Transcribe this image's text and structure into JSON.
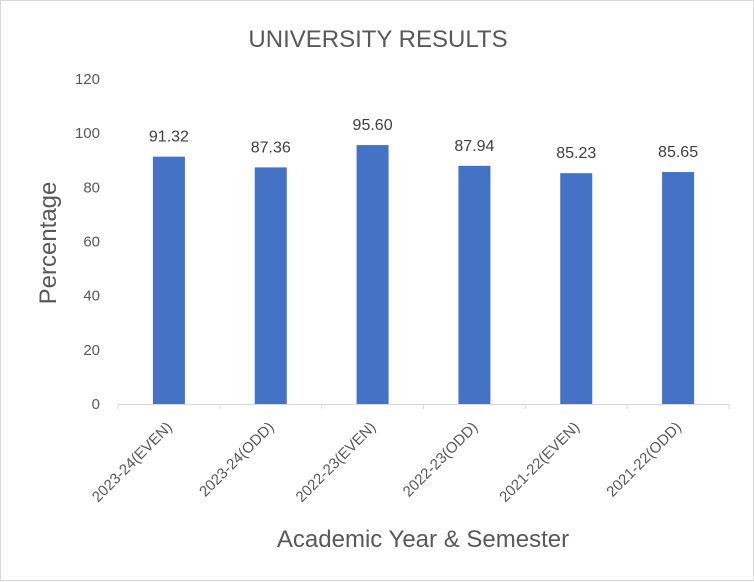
{
  "chart_data": {
    "type": "bar",
    "title": "UNIVERSITY RESULTS",
    "xlabel": "Academic Year & Semester",
    "ylabel": "Percentage",
    "categories": [
      "2023-24(EVEN)",
      "2023-24(ODD)",
      "2022-23(EVEN)",
      "2022-23(ODD)",
      "2021-22(EVEN)",
      "2021-22(ODD)"
    ],
    "values": [
      91.32,
      87.36,
      95.6,
      87.94,
      85.23,
      85.65
    ],
    "value_labels": [
      "91.32",
      "87.36",
      "95.60",
      "87.94",
      "85.23",
      "85.65"
    ],
    "ylim": [
      0,
      120
    ],
    "yticks": [
      0,
      20,
      40,
      60,
      80,
      100,
      120
    ],
    "ytick_labels": [
      "0",
      "20",
      "40",
      "60",
      "80",
      "100",
      "120"
    ],
    "grid": false,
    "legend": "none",
    "bar_color": "#4472c4"
  }
}
